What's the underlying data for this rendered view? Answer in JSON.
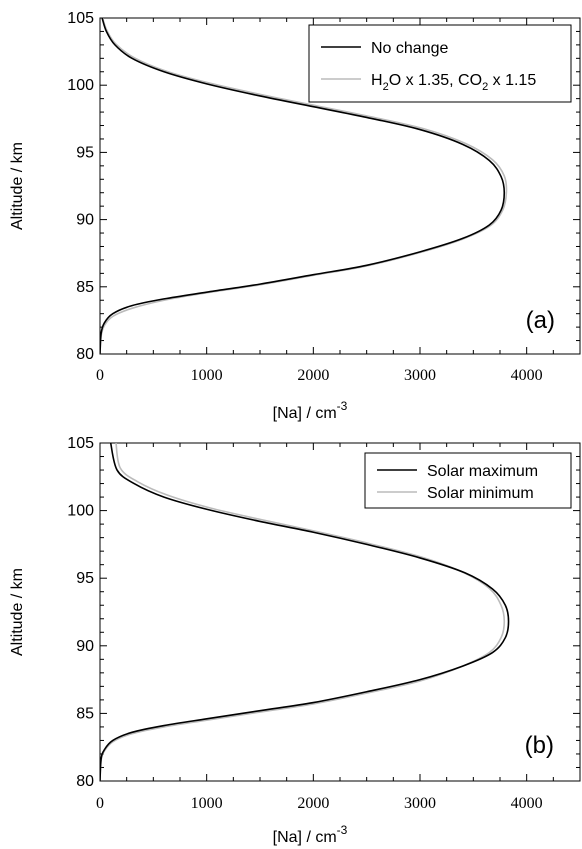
{
  "chart_data": [
    {
      "type": "line",
      "panel_label": "(a)",
      "xlabel": "[Na] / cm",
      "xlabel_sup": "-3",
      "ylabel": "Altitude / km",
      "xlim": [
        0,
        4500
      ],
      "ylim": [
        80,
        105
      ],
      "xticks": [
        "0",
        "1000",
        "2000",
        "3000",
        "4000"
      ],
      "yticks": [
        "80",
        "85",
        "90",
        "95",
        "100",
        "105"
      ],
      "legend_position": "top-right",
      "grid": false,
      "legend": [
        {
          "text": "No change",
          "parts": [
            {
              "t": "No change",
              "sub": false
            }
          ]
        },
        {
          "text": "H2O x 1.35, CO2 x 1.15",
          "parts": [
            {
              "t": "H",
              "sub": false
            },
            {
              "t": "2",
              "sub": true
            },
            {
              "t": "O x 1.35, CO",
              "sub": false
            },
            {
              "t": "2",
              "sub": true
            },
            {
              "t": " x 1.15",
              "sub": false
            }
          ]
        }
      ],
      "series": [
        {
          "color": "#000000",
          "x": [
            0,
            10,
            40,
            120,
            300,
            600,
            1000,
            1500,
            2000,
            2500,
            3000,
            3400,
            3650,
            3760,
            3790,
            3760,
            3650,
            3400,
            3000,
            2500,
            2000,
            1500,
            1000,
            600,
            300,
            140,
            60,
            20
          ],
          "y": [
            80.0,
            81.5,
            82.3,
            83.0,
            83.6,
            84.1,
            84.6,
            85.2,
            85.9,
            86.6,
            87.6,
            88.6,
            89.6,
            90.7,
            92.0,
            93.2,
            94.4,
            95.6,
            96.7,
            97.6,
            98.4,
            99.2,
            100.1,
            101.0,
            102.0,
            103.0,
            104.0,
            105.0
          ]
        },
        {
          "color": "#bbbbbb",
          "x": [
            0,
            10,
            40,
            120,
            300,
            600,
            1000,
            1500,
            2000,
            2500,
            3000,
            3400,
            3660,
            3775,
            3810,
            3790,
            3680,
            3430,
            3040,
            2540,
            2040,
            1540,
            1030,
            620,
            320,
            150,
            66,
            24
          ],
          "y": [
            80.0,
            81.3,
            82.1,
            82.8,
            83.4,
            84.0,
            84.55,
            85.15,
            85.85,
            86.55,
            87.55,
            88.55,
            89.55,
            90.7,
            92.0,
            93.25,
            94.45,
            95.65,
            96.75,
            97.65,
            98.45,
            99.25,
            100.15,
            101.05,
            102.05,
            103.05,
            104.05,
            105.0
          ]
        }
      ]
    },
    {
      "type": "line",
      "panel_label": "(b)",
      "xlabel": "[Na] / cm",
      "xlabel_sup": "-3",
      "ylabel": "Altitude / km",
      "xlim": [
        0,
        4500
      ],
      "ylim": [
        80,
        105
      ],
      "xticks": [
        "0",
        "1000",
        "2000",
        "3000",
        "4000"
      ],
      "yticks": [
        "80",
        "85",
        "90",
        "95",
        "100",
        "105"
      ],
      "legend_position": "top-right",
      "grid": false,
      "legend": [
        {
          "text": "Solar maximum",
          "parts": [
            {
              "t": "Solar maximum",
              "sub": false
            }
          ]
        },
        {
          "text": "Solar minimum",
          "parts": [
            {
              "t": "Solar minimum",
              "sub": false
            }
          ]
        }
      ],
      "series": [
        {
          "color": "#000000",
          "x": [
            0,
            10,
            40,
            120,
            300,
            600,
            1000,
            1500,
            2000,
            2500,
            3000,
            3400,
            3680,
            3800,
            3830,
            3800,
            3680,
            3420,
            3000,
            2500,
            2000,
            1500,
            1000,
            600,
            320,
            160,
            100
          ],
          "y": [
            80.0,
            81.6,
            82.3,
            83.0,
            83.6,
            84.1,
            84.6,
            85.2,
            85.8,
            86.6,
            87.5,
            88.5,
            89.5,
            90.6,
            91.8,
            93.0,
            94.2,
            95.4,
            96.5,
            97.5,
            98.4,
            99.2,
            100.1,
            101.0,
            102.0,
            103.0,
            105.0
          ]
        },
        {
          "color": "#bbbbbb",
          "x": [
            0,
            10,
            40,
            120,
            300,
            600,
            1000,
            1500,
            2000,
            2500,
            3000,
            3400,
            3650,
            3760,
            3790,
            3760,
            3650,
            3400,
            3020,
            2530,
            2030,
            1530,
            1030,
            630,
            350,
            190,
            150
          ],
          "y": [
            80.0,
            81.5,
            82.2,
            82.9,
            83.5,
            84.0,
            84.5,
            85.1,
            85.7,
            86.5,
            87.4,
            88.5,
            89.5,
            90.6,
            91.8,
            93.0,
            94.25,
            95.45,
            96.55,
            97.55,
            98.45,
            99.3,
            100.2,
            101.15,
            102.15,
            103.15,
            105.0
          ]
        }
      ]
    }
  ]
}
